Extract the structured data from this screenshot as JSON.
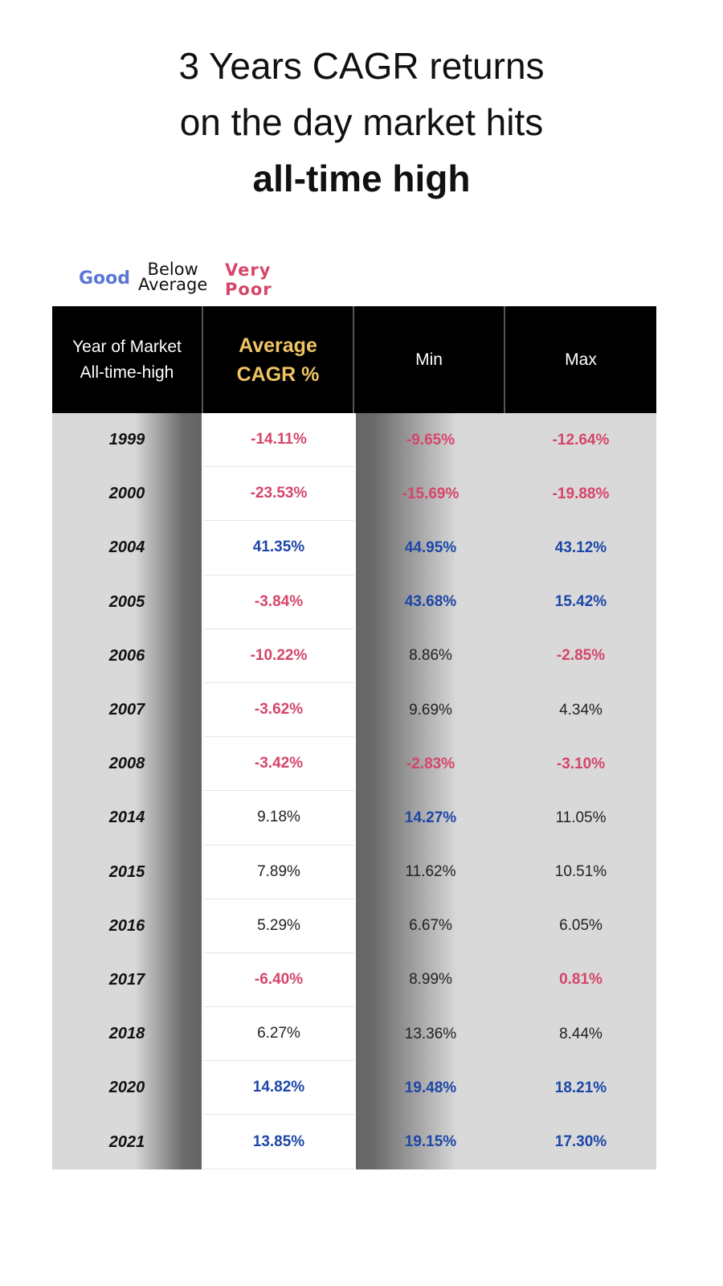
{
  "title": {
    "line1": "3 Years CAGR returns",
    "line2": "on the day market hits",
    "line3": "all-time high"
  },
  "legend": {
    "good": "Good",
    "below_average": "Below\nAverage",
    "very_poor": "Very\nPoor"
  },
  "colors": {
    "good": "#1d47a8",
    "good_legend": "#5b77d8",
    "very_poor": "#d6456a",
    "below_average": "#222222",
    "header_bg": "#000000",
    "header_accent": "#f0c463"
  },
  "chart_data": {
    "type": "table",
    "title": "3 Years CAGR returns on the day market hits all-time high",
    "columns": [
      "Year of Market\nAll-time-high",
      "Average\nCAGR %",
      "Min",
      "Max"
    ],
    "rows": [
      {
        "year": "1999",
        "avg": "-14.11%",
        "min": "-9.65%",
        "max": "-12.64%",
        "tone": [
          "r",
          "r",
          "r"
        ]
      },
      {
        "year": "2000",
        "avg": "-23.53%",
        "min": "-15.69%",
        "max": "-19.88%",
        "tone": [
          "r",
          "r",
          "r"
        ]
      },
      {
        "year": "2004",
        "avg": "41.35%",
        "min": "44.95%",
        "max": "43.12%",
        "tone": [
          "g",
          "g",
          "g"
        ]
      },
      {
        "year": "2005",
        "avg": "-3.84%",
        "min": "43.68%",
        "max": "15.42%",
        "tone": [
          "r",
          "g",
          "g"
        ]
      },
      {
        "year": "2006",
        "avg": "-10.22%",
        "min": "8.86%",
        "max": "-2.85%",
        "tone": [
          "r",
          "n",
          "r"
        ]
      },
      {
        "year": "2007",
        "avg": "-3.62%",
        "min": "9.69%",
        "max": "4.34%",
        "tone": [
          "r",
          "n",
          "n"
        ]
      },
      {
        "year": "2008",
        "avg": "-3.42%",
        "min": "-2.83%",
        "max": "-3.10%",
        "tone": [
          "r",
          "r",
          "r"
        ]
      },
      {
        "year": "2014",
        "avg": "9.18%",
        "min": "14.27%",
        "max": "11.05%",
        "tone": [
          "n",
          "g",
          "n"
        ]
      },
      {
        "year": "2015",
        "avg": "7.89%",
        "min": "11.62%",
        "max": "10.51%",
        "tone": [
          "n",
          "n",
          "n"
        ]
      },
      {
        "year": "2016",
        "avg": "5.29%",
        "min": "6.67%",
        "max": "6.05%",
        "tone": [
          "n",
          "n",
          "n"
        ]
      },
      {
        "year": "2017",
        "avg": "-6.40%",
        "min": "8.99%",
        "max": "0.81%",
        "tone": [
          "r",
          "n",
          "r"
        ]
      },
      {
        "year": "2018",
        "avg": "6.27%",
        "min": "13.36%",
        "max": "8.44%",
        "tone": [
          "n",
          "n",
          "n"
        ]
      },
      {
        "year": "2020",
        "avg": "14.82%",
        "min": "19.48%",
        "max": "18.21%",
        "tone": [
          "g",
          "g",
          "g"
        ]
      },
      {
        "year": "2021",
        "avg": "13.85%",
        "min": "19.15%",
        "max": "17.30%",
        "tone": [
          "g",
          "g",
          "g"
        ]
      }
    ]
  }
}
